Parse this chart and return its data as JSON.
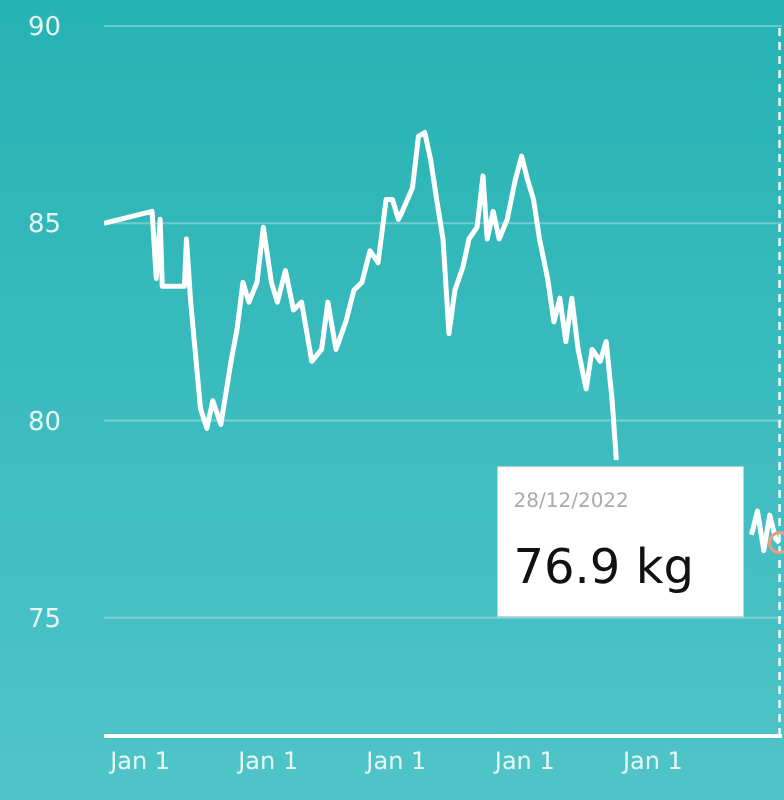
{
  "chart_data": {
    "type": "line",
    "x": [
      "2017-09-20",
      "2018-02-04",
      "2018-02-16",
      "2018-02-27",
      "2018-03-05",
      "2018-05-07",
      "2018-05-13",
      "2018-05-25",
      "2018-06-22",
      "2018-07-10",
      "2018-07-27",
      "2018-08-19",
      "2018-09-17",
      "2018-10-04",
      "2018-10-21",
      "2018-11-07",
      "2018-11-30",
      "2018-12-18",
      "2019-01-10",
      "2019-01-27",
      "2019-02-19",
      "2019-03-14",
      "2019-04-06",
      "2019-05-05",
      "2019-06-02",
      "2019-06-20",
      "2019-07-13",
      "2019-08-10",
      "2019-09-02",
      "2019-09-25",
      "2019-10-18",
      "2019-11-10",
      "2019-12-03",
      "2019-12-21",
      "2020-01-07",
      "2020-01-18",
      "2020-02-16",
      "2020-03-04",
      "2020-03-22",
      "2020-04-08",
      "2020-04-25",
      "2020-05-13",
      "2020-05-30",
      "2020-06-16",
      "2020-07-09",
      "2020-07-26",
      "2020-08-18",
      "2020-09-04",
      "2020-09-16",
      "2020-10-03",
      "2020-10-20",
      "2020-11-12",
      "2020-12-05",
      "2020-12-23",
      "2021-01-09",
      "2021-01-26",
      "2021-02-12",
      "2021-03-07",
      "2021-03-25",
      "2021-04-11",
      "2021-04-28",
      "2021-05-15",
      "2021-06-02",
      "2021-06-25",
      "2021-07-12",
      "2021-08-04",
      "2021-08-21",
      "2021-09-07",
      "2021-09-19",
      "2021-10-15",
      "2022-10-09",
      "2022-10-26",
      "2022-11-13",
      "2022-11-30",
      "2022-12-17",
      "2022-12-28"
    ],
    "series": [
      {
        "color": "#ffffff",
        "values": [
          85.0,
          85.3,
          83.6,
          85.1,
          83.4,
          83.4,
          84.6,
          83.0,
          80.3,
          79.8,
          80.5,
          79.9,
          81.5,
          82.3,
          83.5,
          83.0,
          83.5,
          84.9,
          83.5,
          83.0,
          83.8,
          82.8,
          83.0,
          81.5,
          81.8,
          83.0,
          81.8,
          82.5,
          83.3,
          83.5,
          84.3,
          84.0,
          85.6,
          85.6,
          85.1,
          85.3,
          85.9,
          87.2,
          87.3,
          86.6,
          85.6,
          84.6,
          82.2,
          83.3,
          83.9,
          84.6,
          84.9,
          86.2,
          84.6,
          85.3,
          84.6,
          85.1,
          86.1,
          86.7,
          86.1,
          85.6,
          84.6,
          83.6,
          82.5,
          83.1,
          82.0,
          83.1,
          81.8,
          80.8,
          81.8,
          81.5,
          82.0,
          80.5,
          79.0,
          null,
          77.1,
          77.7,
          76.7,
          77.6,
          77.0,
          76.9
        ]
      }
    ],
    "xlim": [
      "2017-09-20",
      "2023-01-04"
    ],
    "xticks": [
      {
        "value": "2018-01-01",
        "label": "Jan 1"
      },
      {
        "value": "2019-01-01",
        "label": "Jan 1"
      },
      {
        "value": "2020-01-01",
        "label": "Jan 1"
      },
      {
        "value": "2021-01-01",
        "label": "Jan 1"
      },
      {
        "value": "2022-01-01",
        "label": "Jan 1"
      }
    ],
    "ylim": [
      72,
      90
    ],
    "yticks": [
      75,
      80,
      85,
      90
    ],
    "grid": "y",
    "marker": "none",
    "line_style": "solid",
    "ref_lines": [
      {
        "axis": "x",
        "value": "2022-12-28",
        "color": "#ffffff",
        "line_style": "dashed"
      }
    ],
    "annotations": [
      "28/12/2022",
      "76.9 kg"
    ]
  }
}
